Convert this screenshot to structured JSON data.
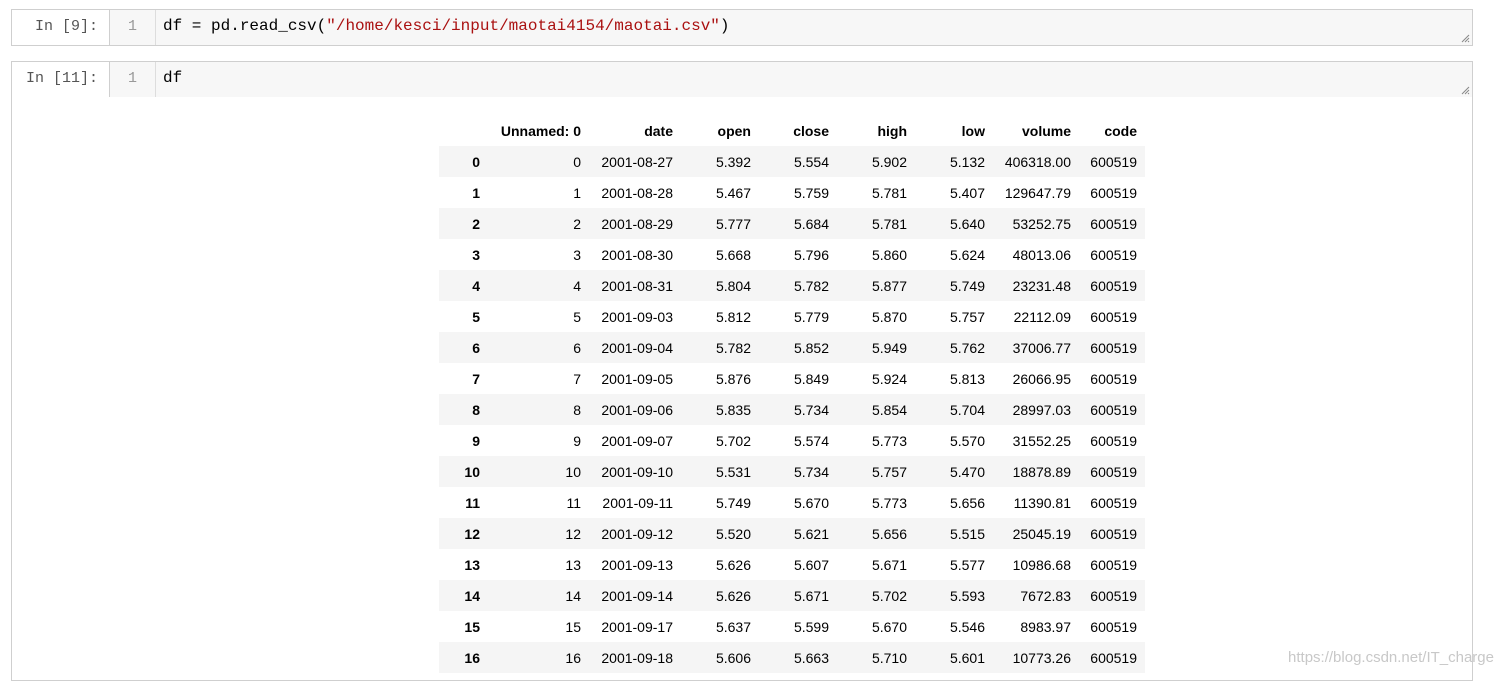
{
  "cells": [
    {
      "prompt": "In [9]:",
      "line_number": "1",
      "code": [
        "df = pd.read_csv(",
        "\"/home/kesci/input/maotai4154/maotai.csv\"",
        ")"
      ]
    },
    {
      "prompt": "In [11]:",
      "line_number": "1",
      "code": [
        "df"
      ]
    }
  ],
  "output_table": {
    "columns": [
      "Unnamed: 0",
      "date",
      "open",
      "close",
      "high",
      "low",
      "volume",
      "code"
    ],
    "rows": [
      {
        "index": "0",
        "cells": [
          "0",
          "2001-08-27",
          "5.392",
          "5.554",
          "5.902",
          "5.132",
          "406318.00",
          "600519"
        ]
      },
      {
        "index": "1",
        "cells": [
          "1",
          "2001-08-28",
          "5.467",
          "5.759",
          "5.781",
          "5.407",
          "129647.79",
          "600519"
        ]
      },
      {
        "index": "2",
        "cells": [
          "2",
          "2001-08-29",
          "5.777",
          "5.684",
          "5.781",
          "5.640",
          "53252.75",
          "600519"
        ]
      },
      {
        "index": "3",
        "cells": [
          "3",
          "2001-08-30",
          "5.668",
          "5.796",
          "5.860",
          "5.624",
          "48013.06",
          "600519"
        ]
      },
      {
        "index": "4",
        "cells": [
          "4",
          "2001-08-31",
          "5.804",
          "5.782",
          "5.877",
          "5.749",
          "23231.48",
          "600519"
        ]
      },
      {
        "index": "5",
        "cells": [
          "5",
          "2001-09-03",
          "5.812",
          "5.779",
          "5.870",
          "5.757",
          "22112.09",
          "600519"
        ]
      },
      {
        "index": "6",
        "cells": [
          "6",
          "2001-09-04",
          "5.782",
          "5.852",
          "5.949",
          "5.762",
          "37006.77",
          "600519"
        ]
      },
      {
        "index": "7",
        "cells": [
          "7",
          "2001-09-05",
          "5.876",
          "5.849",
          "5.924",
          "5.813",
          "26066.95",
          "600519"
        ]
      },
      {
        "index": "8",
        "cells": [
          "8",
          "2001-09-06",
          "5.835",
          "5.734",
          "5.854",
          "5.704",
          "28997.03",
          "600519"
        ]
      },
      {
        "index": "9",
        "cells": [
          "9",
          "2001-09-07",
          "5.702",
          "5.574",
          "5.773",
          "5.570",
          "31552.25",
          "600519"
        ]
      },
      {
        "index": "10",
        "cells": [
          "10",
          "2001-09-10",
          "5.531",
          "5.734",
          "5.757",
          "5.470",
          "18878.89",
          "600519"
        ]
      },
      {
        "index": "11",
        "cells": [
          "11",
          "2001-09-11",
          "5.749",
          "5.670",
          "5.773",
          "5.656",
          "11390.81",
          "600519"
        ]
      },
      {
        "index": "12",
        "cells": [
          "12",
          "2001-09-12",
          "5.520",
          "5.621",
          "5.656",
          "5.515",
          "25045.19",
          "600519"
        ]
      },
      {
        "index": "13",
        "cells": [
          "13",
          "2001-09-13",
          "5.626",
          "5.607",
          "5.671",
          "5.577",
          "10986.68",
          "600519"
        ]
      },
      {
        "index": "14",
        "cells": [
          "14",
          "2001-09-14",
          "5.626",
          "5.671",
          "5.702",
          "5.593",
          "7672.83",
          "600519"
        ]
      },
      {
        "index": "15",
        "cells": [
          "15",
          "2001-09-17",
          "5.637",
          "5.599",
          "5.670",
          "5.546",
          "8983.97",
          "600519"
        ]
      },
      {
        "index": "16",
        "cells": [
          "16",
          "2001-09-18",
          "5.606",
          "5.663",
          "5.710",
          "5.601",
          "10773.26",
          "600519"
        ]
      }
    ]
  },
  "watermark": "https://blog.csdn.net/IT_charge"
}
